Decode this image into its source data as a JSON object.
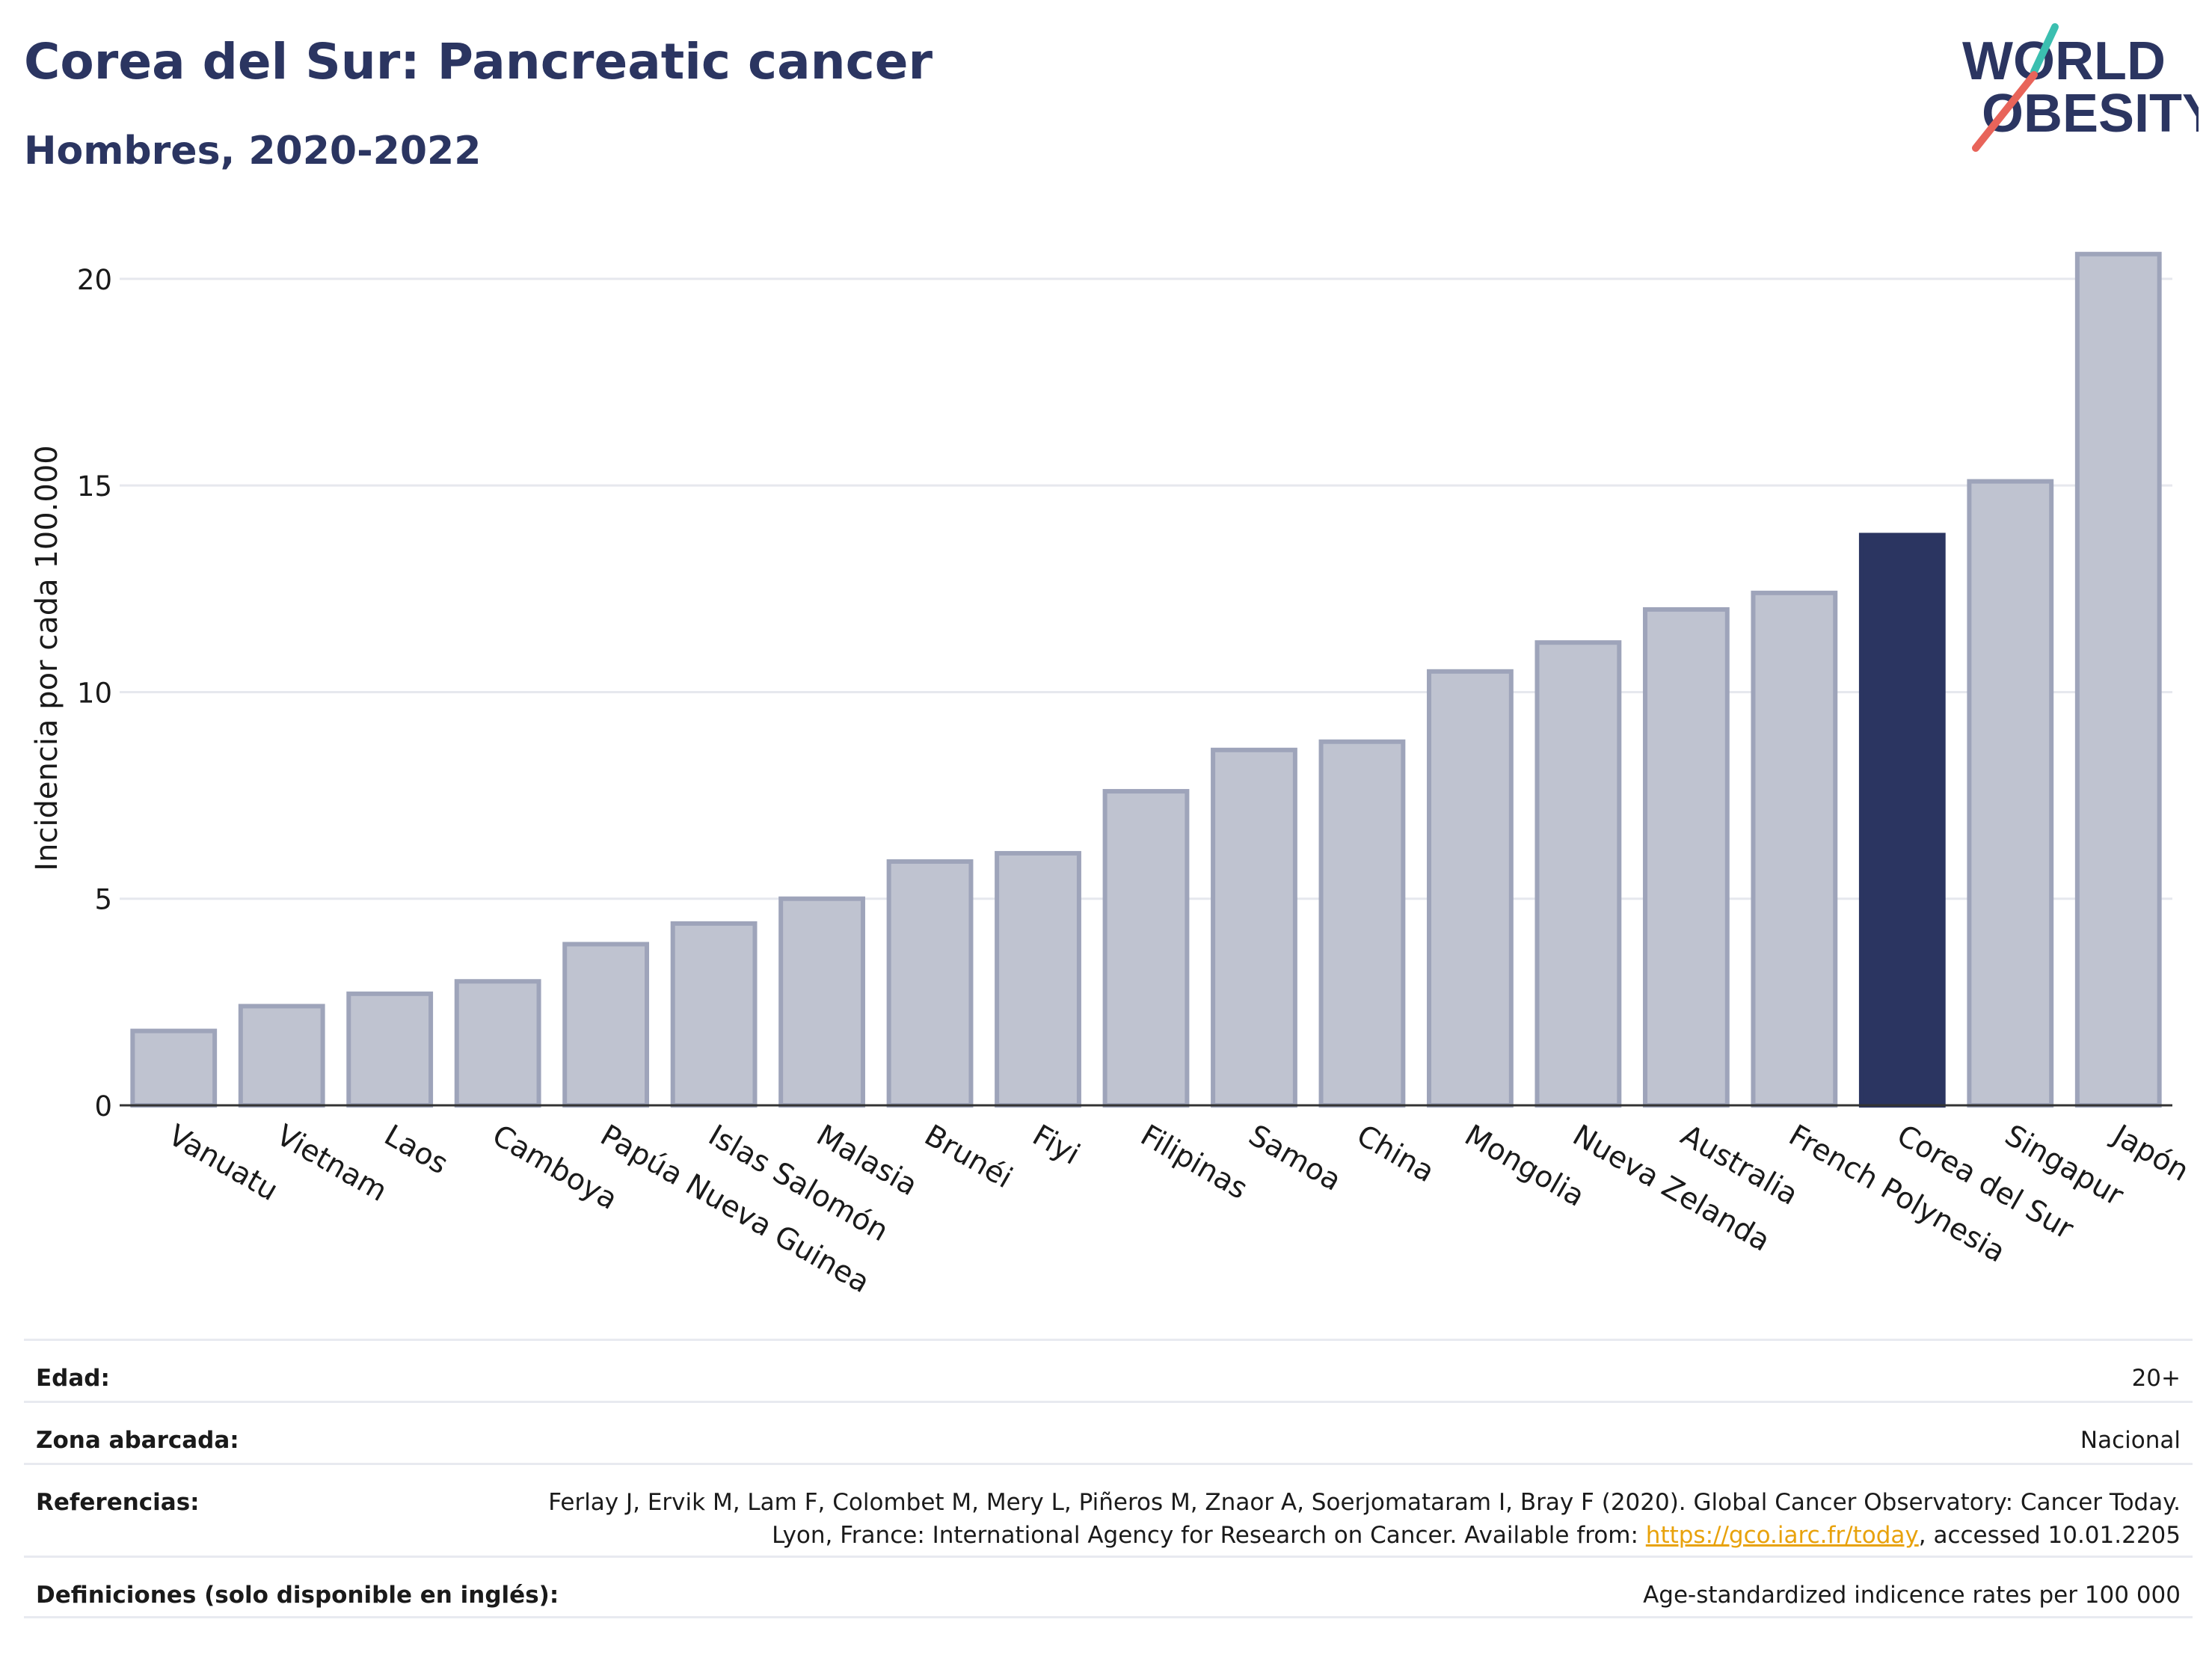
{
  "header": {
    "title": "Corea del Sur: Pancreatic cancer",
    "subtitle": "Hombres, 2020-2022",
    "logo_line1": "WORLD",
    "logo_line2": "OBESITY"
  },
  "chart_data": {
    "type": "bar",
    "ylabel": "Incidencia por cada 100.000",
    "ylim": [
      0,
      21.5
    ],
    "yticks": [
      "0",
      "5",
      "10",
      "15",
      "20"
    ],
    "ytick_values": [
      0,
      5,
      10,
      15,
      20
    ],
    "grid": true,
    "categories": [
      "Vanuatu",
      "Vietnam",
      "Laos",
      "Camboya",
      "Papúa Nueva Guinea",
      "Islas Salomón",
      "Malasia",
      "Brunéi",
      "Fiyi",
      "Filipinas",
      "Samoa",
      "China",
      "Mongolia",
      "Nueva Zelanda",
      "Australia",
      "French Polynesia",
      "Corea del Sur",
      "Singapur",
      "Japón"
    ],
    "values": [
      1.8,
      2.4,
      2.7,
      3.0,
      3.9,
      4.4,
      5.0,
      5.9,
      6.1,
      7.6,
      8.6,
      8.8,
      10.5,
      11.2,
      12.0,
      12.4,
      13.8,
      15.1,
      20.6
    ],
    "highlight": "Corea del Sur",
    "colors": {
      "bar": "#bfc3d0",
      "bar_border": "#9ea4ba",
      "highlight": "#2b3561",
      "axis": "#333333",
      "grid": "#e6e8ee"
    }
  },
  "info": {
    "rows": [
      {
        "label": "Edad:",
        "value": "20+"
      },
      {
        "label": "Zona abarcada:",
        "value": "Nacional"
      },
      {
        "label": "Referencias:",
        "value_pre": "Ferlay J, Ervik M, Lam F, Colombet M, Mery L, Piñeros M, Znaor A, Soerjomataram I, Bray F (2020). Global Cancer Observatory: Cancer Today. Lyon, France: International Agency for Research on Cancer. Available from: ",
        "link": "https://gco.iarc.fr/today",
        "value_post": ", accessed 10.01.2205"
      },
      {
        "label": "Definiciones (solo disponible en inglés):",
        "value": "Age-standardized indicence rates per 100 000"
      }
    ]
  }
}
